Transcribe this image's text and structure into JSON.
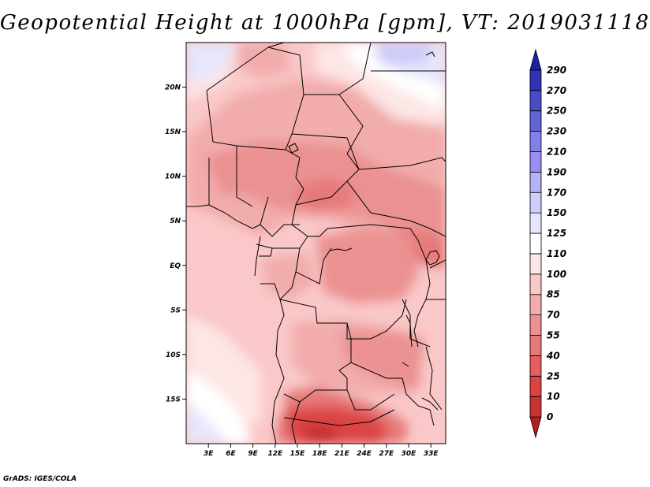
{
  "title": "Geopotential Height at 1000hPa [gpm], VT: 2019031118",
  "credit": "GrADS: IGES/COLA",
  "map": {
    "lat_range": [
      -20,
      25
    ],
    "lon_range": [
      0,
      35
    ],
    "lat_ticks": [
      {
        "value": 20,
        "label": "20N"
      },
      {
        "value": 15,
        "label": "15N"
      },
      {
        "value": 10,
        "label": "10N"
      },
      {
        "value": 5,
        "label": "5N"
      },
      {
        "value": 0,
        "label": "EQ"
      },
      {
        "value": -5,
        "label": "5S"
      },
      {
        "value": -10,
        "label": "10S"
      },
      {
        "value": -15,
        "label": "15S"
      }
    ],
    "lon_ticks": [
      {
        "value": 3,
        "label": "3E"
      },
      {
        "value": 6,
        "label": "6E"
      },
      {
        "value": 9,
        "label": "9E"
      },
      {
        "value": 12,
        "label": "12E"
      },
      {
        "value": 15,
        "label": "15E"
      },
      {
        "value": 18,
        "label": "18E"
      },
      {
        "value": 21,
        "label": "21E"
      },
      {
        "value": 24,
        "label": "24E"
      },
      {
        "value": 27,
        "label": "27E"
      },
      {
        "value": 30,
        "label": "30E"
      },
      {
        "value": 33,
        "label": "33E"
      }
    ]
  },
  "colorbar": {
    "levels": [
      "0",
      "10",
      "25",
      "40",
      "55",
      "70",
      "85",
      "100",
      "110",
      "125",
      "150",
      "170",
      "190",
      "210",
      "230",
      "250",
      "270",
      "290"
    ],
    "colors": [
      "#b21f1f",
      "#c83232",
      "#db4444",
      "#e65e5e",
      "#e67a7a",
      "#eb9191",
      "#f2acac",
      "#fac8c8",
      "#fde6e6",
      "#ffffff",
      "#e6e6fc",
      "#cccdfa",
      "#b3b3f5",
      "#9a8ff0",
      "#8080e6",
      "#6464d7",
      "#4b4bc8",
      "#3232b4",
      "#2020a0"
    ]
  }
}
